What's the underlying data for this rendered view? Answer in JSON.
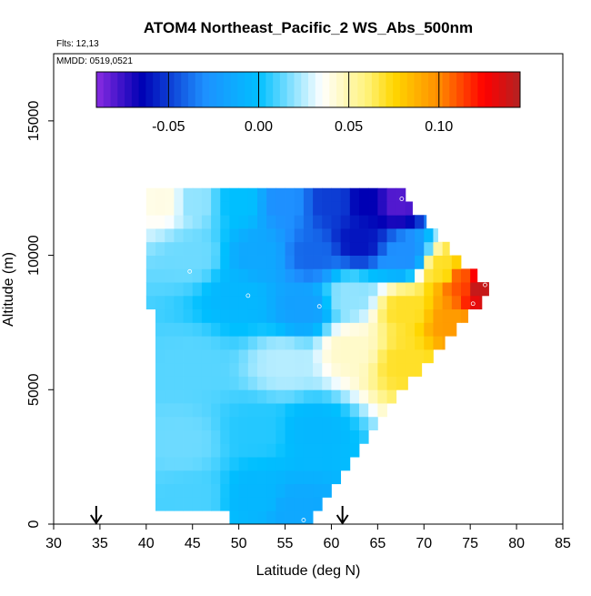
{
  "chart_data": {
    "type": "heatmap",
    "title": "ATOM4 Northeast_Pacific_2 WS_Abs_500nm",
    "annotations": [
      "Flts: 12,13",
      "MMDD: 0519,0521"
    ],
    "xlabel": "Latitude (deg N)",
    "ylabel": "Altitude (m)",
    "xlim": [
      30,
      85
    ],
    "ylim": [
      0,
      17500
    ],
    "xticks": [
      30,
      35,
      40,
      45,
      50,
      55,
      60,
      65,
      70,
      75,
      80,
      85
    ],
    "yticks": [
      0,
      5000,
      10000,
      15000
    ],
    "grid": false,
    "colorbar": {
      "range": [
        -0.09,
        0.145
      ],
      "ticks": [
        "-0.05",
        "0.00",
        "0.05",
        "0.10"
      ],
      "tick_values": [
        -0.05,
        0.0,
        0.05,
        0.1
      ],
      "colors": [
        "#8a2be2",
        "#0000b4",
        "#1e90ff",
        "#00bfff",
        "#ffffff",
        "#fff27a",
        "#ffd700",
        "#ff8c00",
        "#ff0000",
        "#b22222"
      ],
      "color_stops": [
        -0.09,
        -0.065,
        -0.03,
        0.0,
        0.035,
        0.06,
        0.075,
        0.1,
        0.125,
        0.145
      ]
    },
    "cells_note": "Gridded field: latitude bins 1 deg, altitude bins 500 m",
    "outline_lat_min": [
      [
        0,
        41.5
      ],
      [
        2000,
        41.5
      ],
      [
        4000,
        41.3
      ],
      [
        6000,
        41.2
      ],
      [
        8000,
        41.0
      ],
      [
        10000,
        40.6
      ],
      [
        12000,
        40.2
      ],
      [
        12500,
        40.0
      ]
    ],
    "outline_lat_max": [
      [
        0,
        57.5
      ],
      [
        500,
        58.5
      ],
      [
        1000,
        59.5
      ],
      [
        1500,
        60.5
      ],
      [
        2000,
        61.5
      ],
      [
        2500,
        62.5
      ],
      [
        3000,
        63.5
      ],
      [
        3500,
        64.5
      ],
      [
        4000,
        65.5
      ],
      [
        4500,
        66.5
      ],
      [
        5000,
        67.5
      ],
      [
        5500,
        69.0
      ],
      [
        6000,
        70.5
      ],
      [
        6500,
        71.5
      ],
      [
        7000,
        73.0
      ],
      [
        7500,
        74.0
      ],
      [
        8000,
        75.5
      ],
      [
        8500,
        77.0
      ],
      [
        9000,
        77.0
      ],
      [
        9500,
        74.5
      ],
      [
        10000,
        73.5
      ],
      [
        10500,
        72.0
      ],
      [
        11000,
        71.0
      ],
      [
        11500,
        69.5
      ],
      [
        12000,
        68.0
      ],
      [
        12500,
        68.0
      ]
    ],
    "field_points": [
      {
        "lat": 42,
        "alt": 12000,
        "v": 0.04
      },
      {
        "lat": 45,
        "alt": 12000,
        "v": 0.02
      },
      {
        "lat": 50,
        "alt": 12000,
        "v": 0.0
      },
      {
        "lat": 55,
        "alt": 12000,
        "v": -0.03
      },
      {
        "lat": 60,
        "alt": 12000,
        "v": -0.05
      },
      {
        "lat": 64,
        "alt": 12000,
        "v": -0.065
      },
      {
        "lat": 67,
        "alt": 12000,
        "v": -0.08
      },
      {
        "lat": 45,
        "alt": 10000,
        "v": 0.015
      },
      {
        "lat": 52,
        "alt": 10000,
        "v": -0.015
      },
      {
        "lat": 58,
        "alt": 10000,
        "v": -0.04
      },
      {
        "lat": 63,
        "alt": 10500,
        "v": -0.06
      },
      {
        "lat": 68,
        "alt": 10000,
        "v": -0.03
      },
      {
        "lat": 72,
        "alt": 9500,
        "v": 0.07
      },
      {
        "lat": 74,
        "alt": 9000,
        "v": 0.11
      },
      {
        "lat": 76,
        "alt": 8800,
        "v": 0.14
      },
      {
        "lat": 50,
        "alt": 8500,
        "v": -0.005
      },
      {
        "lat": 57,
        "alt": 8000,
        "v": -0.02
      },
      {
        "lat": 62,
        "alt": 8500,
        "v": 0.02
      },
      {
        "lat": 68,
        "alt": 8000,
        "v": 0.07
      },
      {
        "lat": 73,
        "alt": 7500,
        "v": 0.095
      },
      {
        "lat": 45,
        "alt": 6000,
        "v": 0.012
      },
      {
        "lat": 55,
        "alt": 6000,
        "v": 0.025
      },
      {
        "lat": 62,
        "alt": 6500,
        "v": 0.045
      },
      {
        "lat": 68,
        "alt": 6000,
        "v": 0.07
      },
      {
        "lat": 44,
        "alt": 3000,
        "v": 0.015
      },
      {
        "lat": 52,
        "alt": 3500,
        "v": 0.005
      },
      {
        "lat": 58,
        "alt": 3500,
        "v": -0.005
      },
      {
        "lat": 45,
        "alt": 1000,
        "v": 0.01
      },
      {
        "lat": 52,
        "alt": 1000,
        "v": -0.005
      },
      {
        "lat": 56,
        "alt": 500,
        "v": -0.015
      }
    ],
    "markers_arrows": [
      {
        "lat": 34.6
      },
      {
        "lat": 61.2
      }
    ],
    "markers_circles": [
      {
        "lat": 67.6,
        "alt": 12100
      },
      {
        "lat": 44.7,
        "alt": 9400
      },
      {
        "lat": 51.0,
        "alt": 8500
      },
      {
        "lat": 58.7,
        "alt": 8100
      },
      {
        "lat": 76.6,
        "alt": 8900
      },
      {
        "lat": 75.3,
        "alt": 8200
      },
      {
        "lat": 57.0,
        "alt": 150
      }
    ]
  }
}
